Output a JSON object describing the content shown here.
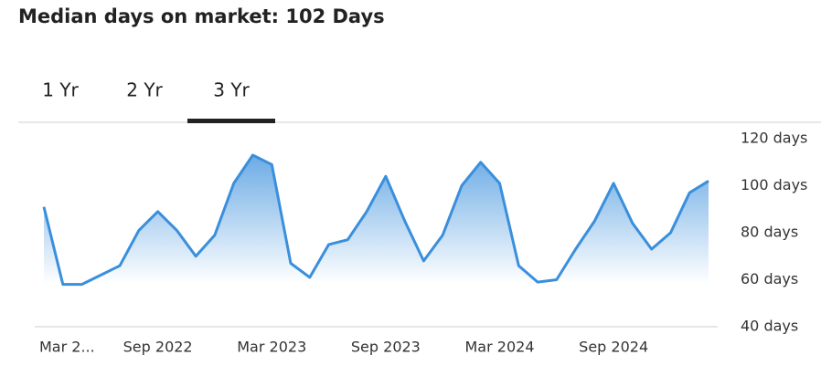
{
  "header": {
    "title": "Median days on market: 102 Days"
  },
  "tabs": {
    "items": [
      "1 Yr",
      "2 Yr",
      "3 Yr"
    ],
    "selected": 2
  },
  "chart_data": {
    "type": "line",
    "categories": [
      "Mar 2...",
      null,
      null,
      null,
      null,
      null,
      "Sep 2022",
      null,
      null,
      null,
      null,
      null,
      "Mar 2023",
      null,
      null,
      null,
      null,
      null,
      "Sep 2023",
      null,
      null,
      null,
      null,
      null,
      "Mar 2024",
      null,
      null,
      null,
      null,
      null,
      "Sep 2024",
      null,
      null,
      null,
      null,
      null
    ],
    "values": [
      91,
      58,
      58,
      62,
      66,
      81,
      89,
      81,
      70,
      79,
      101,
      113,
      109,
      67,
      61,
      75,
      77,
      89,
      104,
      85,
      68,
      79,
      100,
      110,
      101,
      66,
      59,
      60,
      73,
      85,
      101,
      84,
      73,
      80,
      97,
      102
    ],
    "color": "#3a8fdc",
    "ylim": [
      40,
      120
    ],
    "yticks": [
      {
        "value": 40,
        "label": "40 days"
      },
      {
        "value": 60,
        "label": "60 days"
      },
      {
        "value": 80,
        "label": "80 days"
      },
      {
        "value": 100,
        "label": "100 days"
      },
      {
        "value": 120,
        "label": "120 days"
      }
    ],
    "grid": false
  }
}
